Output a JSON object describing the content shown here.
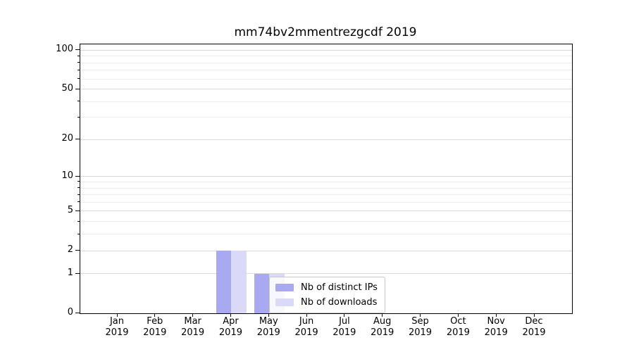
{
  "chart_data": {
    "type": "bar",
    "title": "mm74bv2mmentrezgcdf 2019",
    "categories": [
      "Jan",
      "Feb",
      "Mar",
      "Apr",
      "May",
      "Jun",
      "Jul",
      "Aug",
      "Sep",
      "Oct",
      "Nov",
      "Dec"
    ],
    "category_subline": "2019",
    "xlabel": "",
    "ylabel": "",
    "yscale": "log1p",
    "ylim": [
      0,
      110.7
    ],
    "yticks": [
      0,
      1,
      2,
      5,
      10,
      20,
      50,
      100
    ],
    "minor_yticks": [
      3,
      4,
      6,
      7,
      8,
      9,
      30,
      40,
      60,
      70,
      80,
      90
    ],
    "grid": "horizontal",
    "legend_position": "lower-center",
    "series": [
      {
        "name": "Nb of distinct IPs",
        "color": "#a9a9f2",
        "values": [
          0,
          0,
          0,
          2,
          1,
          0,
          0,
          0,
          0,
          0,
          0,
          0
        ]
      },
      {
        "name": "Nb of downloads",
        "color": "#dadaf8",
        "values": [
          0,
          0,
          0,
          2,
          1,
          0,
          0,
          0,
          0,
          0,
          0,
          0
        ]
      }
    ]
  }
}
